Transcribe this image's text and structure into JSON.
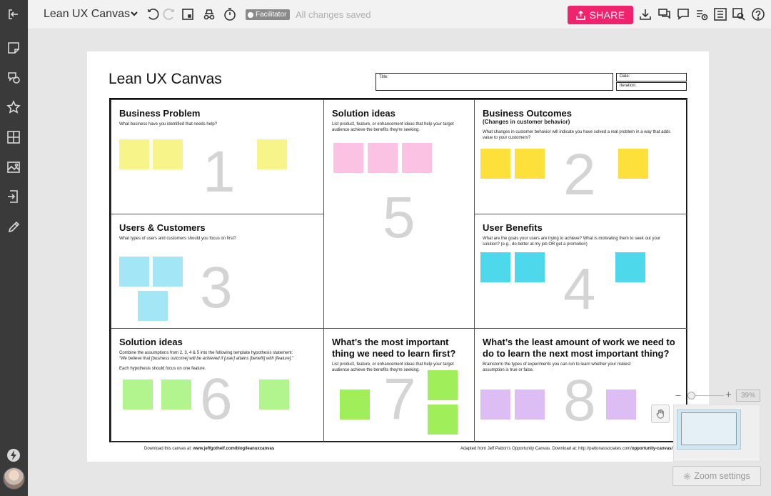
{
  "topbar": {
    "board_title": "Lean UX Canvas",
    "facilitator_label": "Facilitator",
    "saved_status": "All changes saved",
    "share_label": "SHARE"
  },
  "sidebar": {
    "icons": [
      "exit-icon",
      "sticky-note-icon",
      "shapes-icon",
      "star-icon",
      "grid-icon",
      "image-icon",
      "import-icon",
      "pen-icon",
      "lightning-icon"
    ]
  },
  "canvas": {
    "title": "Lean UX Canvas",
    "title_field_label": "Title:",
    "date_field_label": "Date:",
    "iteration_field_label": "Iteration:",
    "cells": {
      "business_problem": {
        "title": "Business Problem",
        "desc": "What business have you identified that needs help?",
        "number": "1"
      },
      "solution_ideas_top": {
        "title": "Solution ideas",
        "desc": "List product, feature, or enhancement ideas that help your target audience achieve the benefits they're seeking.",
        "number": "5"
      },
      "business_outcomes": {
        "title": "Business Outcomes",
        "subtitle": "(Changes in customer behavior)",
        "desc": "What changes in customer behavior will indicate you have solved a real problem in a way that adds value to your customers?",
        "number": "2"
      },
      "users_customers": {
        "title": "Users & Customers",
        "desc": "What types of users and customers should you focus on first?",
        "number": "3"
      },
      "user_benefits": {
        "title": "User Benefits",
        "desc": "What are the goals your users are trying to achieve? What is motivating them to seek out your solution? (e.g., do better at my job OR get a promotion)",
        "number": "4"
      },
      "hypotheses": {
        "title": "Solution ideas",
        "desc1": "Combine the assumptions from 2, 3, 4 & 5 into the following template hypothesis statement:",
        "desc2": "“We believe that [business outcome] will be achieved if [user] attains [benefit] with [feature].”",
        "desc3": "Each hypothesis should focus on one feature.",
        "number": "6"
      },
      "most_important": {
        "title": "What’s the most important thing we need to learn first?",
        "desc": "List product, feature, or enhancement ideas that help your target audience achieve the benefits they're seeking.",
        "number": "7"
      },
      "least_work": {
        "title": "What’s the least amount of work we need to do to learn the next most important thing?",
        "desc": "Brainstorm the types of experiments you can run to learn whether your riskiest assumption is true or false.",
        "number": "8"
      }
    },
    "footer_left_prefix": "Download this canvas at: ",
    "footer_left_link": "www.jeffgothelf.com/blog/leanuxcanvas",
    "footer_right_prefix": "Adapted from Jeff Patton's Opportunity Canvas. Download at: http://pattonassociates.com/",
    "footer_right_link": "opportunity-canvas/"
  },
  "zoom": {
    "minus": "−",
    "plus": "+",
    "percent": "39%",
    "settings_label": "Zoom settings"
  },
  "colors": {
    "share": "#f0236e",
    "sidebar": "#3a3a3a",
    "note_yellow_light": "#f7f58a",
    "note_yellow": "#fde13a",
    "note_pink": "#fcc2e3",
    "note_blue_light": "#a3e6f6",
    "note_blue": "#4ed8ec",
    "note_green_light": "#b2f58e",
    "note_green": "#a0ee5a",
    "note_purple": "#dcbef5"
  }
}
